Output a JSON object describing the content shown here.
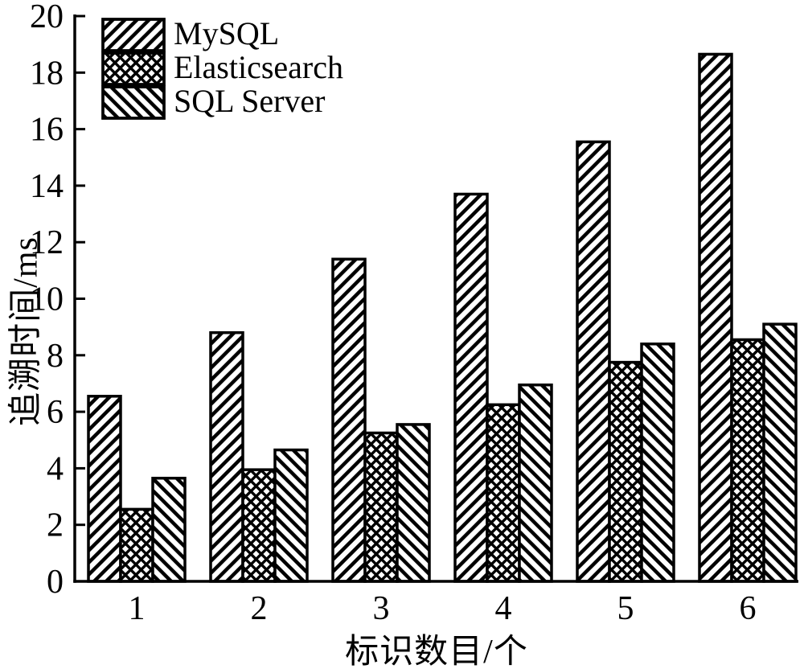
{
  "figure": {
    "background": "#ffffff",
    "ink_color": "#000000",
    "bar_fill": "#ffffff"
  },
  "chart_data": {
    "type": "bar",
    "title": "",
    "xlabel": "标识数目/个",
    "ylabel": "追溯时间/ms",
    "categories": [
      "1",
      "2",
      "3",
      "4",
      "5",
      "6"
    ],
    "series": [
      {
        "name": "MySQL",
        "hatch": "diagonal-forward",
        "values": [
          6.55,
          8.8,
          11.4,
          13.7,
          15.55,
          18.65
        ]
      },
      {
        "name": "Elasticsearch",
        "hatch": "crosshatch",
        "values": [
          2.55,
          3.95,
          5.25,
          6.25,
          7.75,
          8.55
        ]
      },
      {
        "name": "SQL Server",
        "hatch": "diagonal-backward",
        "values": [
          3.65,
          4.65,
          5.55,
          6.95,
          8.4,
          9.1
        ]
      }
    ],
    "ylim": [
      0,
      20
    ],
    "yticks": [
      0,
      2,
      4,
      6,
      8,
      10,
      12,
      14,
      16,
      18,
      20
    ],
    "grid": false,
    "legend_position": "top-left",
    "bar_edge_color": "#000000"
  }
}
